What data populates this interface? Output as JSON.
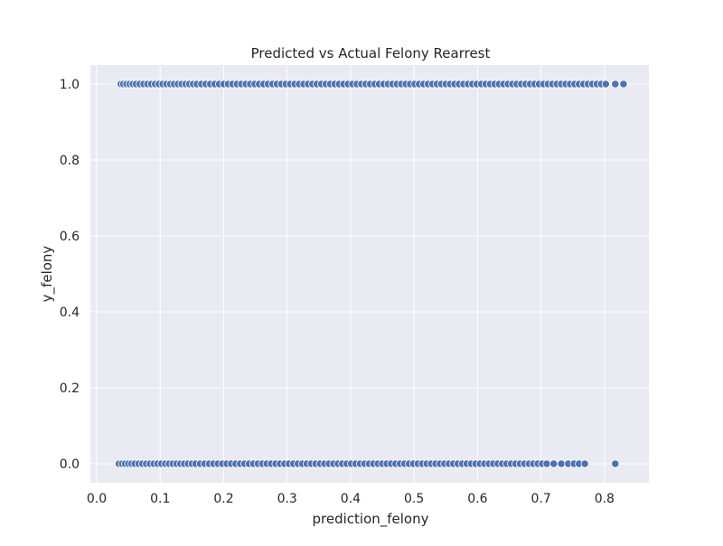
{
  "chart_data": {
    "type": "scatter",
    "title": "Predicted vs Actual Felony Rearrest",
    "xlabel": "prediction_felony",
    "ylabel": "y_felony",
    "xlim": [
      -0.01,
      0.87
    ],
    "ylim": [
      -0.05,
      1.05
    ],
    "xticks": [
      "0.0",
      "0.1",
      "0.2",
      "0.3",
      "0.4",
      "0.5",
      "0.6",
      "0.7",
      "0.8"
    ],
    "xtick_values": [
      0.0,
      0.1,
      0.2,
      0.3,
      0.4,
      0.5,
      0.6,
      0.7,
      0.8
    ],
    "yticks": [
      "0.0",
      "0.2",
      "0.4",
      "0.6",
      "0.8",
      "1.0"
    ],
    "ytick_values": [
      0.0,
      0.2,
      0.4,
      0.6,
      0.8,
      1.0
    ],
    "grid": true,
    "colors": {
      "background": "#eaeaf2",
      "grid": "#ffffff",
      "marker": "#4c72b0",
      "marker_edge": "#ffffff",
      "text": "#262626"
    },
    "series": [
      {
        "y": 1,
        "x": [
          0.038,
          0.042,
          0.047,
          0.052,
          0.057,
          0.062,
          0.068,
          0.074,
          0.08,
          0.086,
          0.092,
          0.098,
          0.104,
          0.11,
          0.116,
          0.122,
          0.128,
          0.134,
          0.14,
          0.146,
          0.152,
          0.158,
          0.165,
          0.172,
          0.179,
          0.186,
          0.193,
          0.2,
          0.207,
          0.214,
          0.221,
          0.228,
          0.235,
          0.242,
          0.249,
          0.256,
          0.263,
          0.27,
          0.277,
          0.284,
          0.291,
          0.298,
          0.305,
          0.312,
          0.319,
          0.326,
          0.333,
          0.34,
          0.347,
          0.354,
          0.361,
          0.368,
          0.375,
          0.382,
          0.389,
          0.396,
          0.403,
          0.41,
          0.417,
          0.424,
          0.431,
          0.438,
          0.445,
          0.452,
          0.459,
          0.466,
          0.473,
          0.48,
          0.487,
          0.494,
          0.501,
          0.508,
          0.515,
          0.522,
          0.529,
          0.536,
          0.543,
          0.55,
          0.557,
          0.564,
          0.571,
          0.578,
          0.585,
          0.592,
          0.599,
          0.606,
          0.613,
          0.62,
          0.627,
          0.634,
          0.641,
          0.648,
          0.655,
          0.662,
          0.669,
          0.676,
          0.683,
          0.69,
          0.697,
          0.704,
          0.711,
          0.718,
          0.725,
          0.732,
          0.739,
          0.746,
          0.753,
          0.76,
          0.767,
          0.774,
          0.781,
          0.788,
          0.795,
          0.802,
          0.817,
          0.83
        ]
      },
      {
        "y": 0,
        "x": [
          0.035,
          0.04,
          0.045,
          0.05,
          0.055,
          0.06,
          0.066,
          0.072,
          0.078,
          0.084,
          0.09,
          0.096,
          0.102,
          0.108,
          0.114,
          0.12,
          0.126,
          0.132,
          0.138,
          0.144,
          0.15,
          0.156,
          0.163,
          0.17,
          0.177,
          0.184,
          0.191,
          0.198,
          0.205,
          0.212,
          0.219,
          0.226,
          0.233,
          0.24,
          0.247,
          0.254,
          0.261,
          0.268,
          0.275,
          0.282,
          0.289,
          0.296,
          0.303,
          0.31,
          0.317,
          0.324,
          0.331,
          0.338,
          0.345,
          0.352,
          0.359,
          0.366,
          0.373,
          0.38,
          0.387,
          0.394,
          0.401,
          0.408,
          0.415,
          0.422,
          0.429,
          0.436,
          0.443,
          0.45,
          0.457,
          0.464,
          0.471,
          0.478,
          0.485,
          0.492,
          0.499,
          0.506,
          0.513,
          0.52,
          0.527,
          0.534,
          0.541,
          0.548,
          0.555,
          0.562,
          0.569,
          0.576,
          0.583,
          0.59,
          0.597,
          0.604,
          0.611,
          0.618,
          0.625,
          0.632,
          0.639,
          0.646,
          0.653,
          0.66,
          0.667,
          0.674,
          0.681,
          0.688,
          0.695,
          0.702,
          0.709,
          0.72,
          0.732,
          0.743,
          0.752,
          0.76,
          0.769,
          0.817
        ]
      }
    ]
  }
}
